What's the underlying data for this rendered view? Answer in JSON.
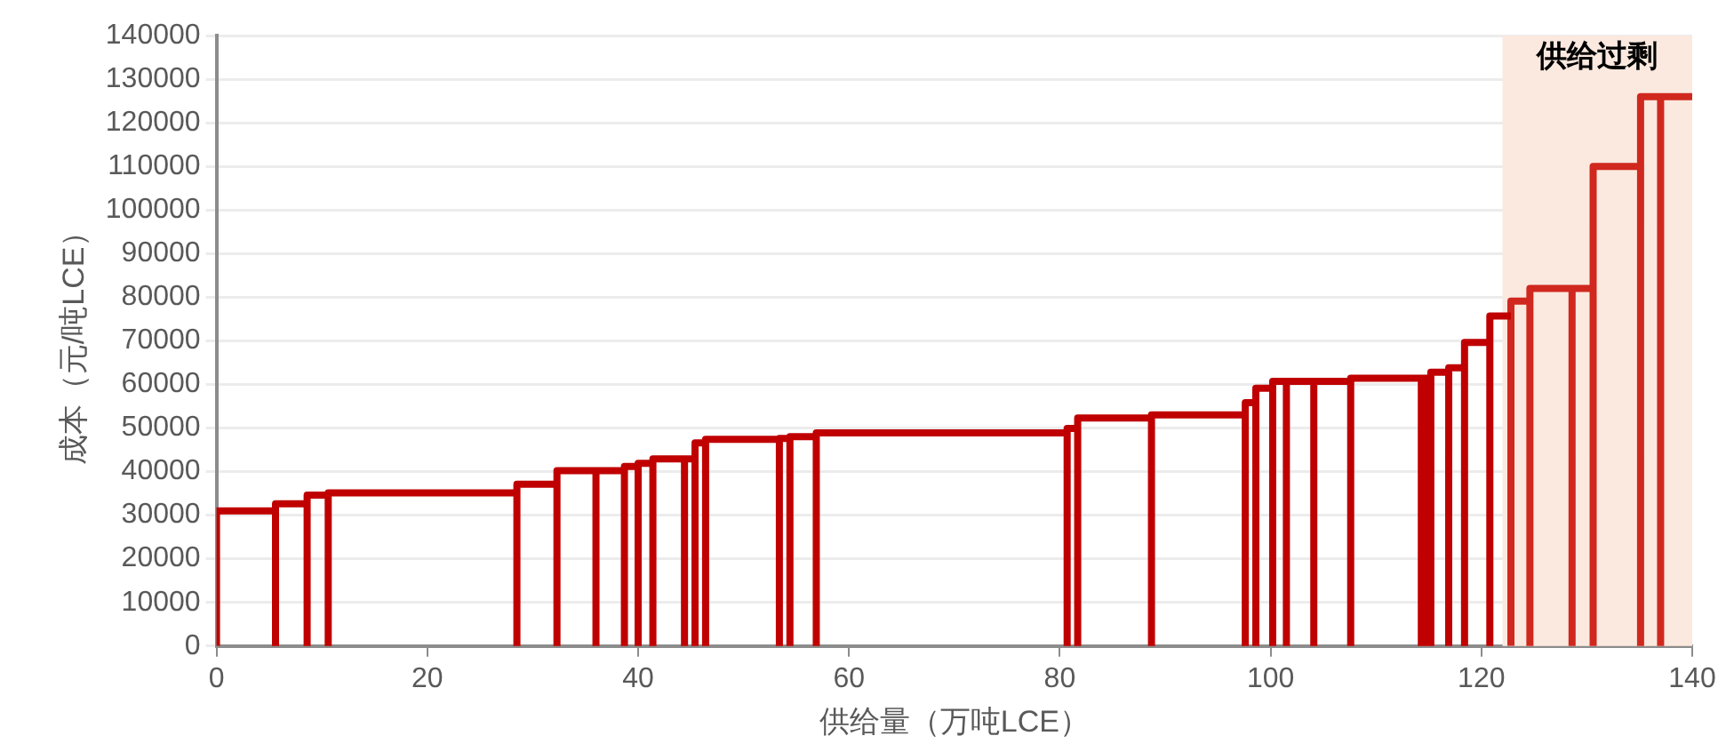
{
  "chart_data": {
    "type": "line",
    "xlabel": "供给量（万吨LCE）",
    "ylabel": "成本（元/吨LCE）",
    "series": [
      {
        "color": "#c00000",
        "x": [
          0,
          0,
          5.6,
          5.6,
          5.6,
          8.6,
          8.6,
          8.6,
          10.6,
          10.6,
          10.6,
          28.5,
          28.5,
          28.5,
          32.3,
          32.3,
          32.3,
          36.0,
          36.0,
          36.0,
          38.7,
          38.7,
          38.7,
          40.0,
          40.0,
          40.0,
          41.4,
          41.4,
          41.4,
          44.4,
          44.4,
          44.4,
          45.4,
          45.4,
          45.4,
          46.4,
          46.4,
          46.4,
          53.4,
          53.4,
          53.4,
          54.4,
          54.4,
          54.4,
          56.9,
          56.9,
          56.9,
          80.7,
          80.7,
          80.7,
          81.7,
          81.7,
          81.7,
          88.7,
          88.7,
          88.7,
          97.6,
          97.6,
          97.6,
          98.6,
          98.6,
          98.6,
          100.2,
          100.2,
          100.2,
          101.5,
          101.5,
          101.5,
          104.1,
          104.1,
          104.1,
          107.6,
          107.6,
          107.6,
          114.3,
          114.3,
          114.3,
          114.8,
          114.8,
          114.8,
          115.2,
          115.2,
          115.2,
          116.9,
          116.9,
          116.9,
          118.4,
          118.4,
          118.4,
          120.8,
          120.8,
          120.8,
          122.8
        ],
        "values": [
          0,
          31000,
          31000,
          0,
          32600,
          32600,
          0,
          34600,
          34600,
          0,
          35100,
          35100,
          0,
          37100,
          37100,
          0,
          40200,
          40200,
          0,
          40200,
          40200,
          0,
          41200,
          41200,
          0,
          41900,
          41900,
          0,
          42900,
          42900,
          0,
          42900,
          42900,
          0,
          46600,
          46600,
          0,
          47400,
          47400,
          0,
          47600,
          47600,
          0,
          48000,
          48000,
          0,
          48900,
          48900,
          0,
          49900,
          49900,
          0,
          52300,
          52300,
          0,
          53000,
          53000,
          0,
          55800,
          55800,
          0,
          59100,
          59100,
          0,
          60700,
          60700,
          0,
          60700,
          60700,
          0,
          60700,
          60700,
          0,
          61400,
          61400,
          0,
          61400,
          61400,
          0,
          61400,
          61400,
          0,
          62800,
          62800,
          0,
          63800,
          63800,
          0,
          69600,
          69600,
          0,
          75700,
          75700
        ]
      },
      {
        "color": "#d0281e",
        "x": [
          122.8,
          122.8,
          124.6,
          124.6,
          124.6,
          128.6,
          128.6,
          128.6,
          130.6,
          130.6,
          130.6,
          135.1,
          135.1,
          135.1,
          137.0,
          137.0,
          137.0,
          140
        ],
        "values": [
          0,
          79100,
          79100,
          0,
          82000,
          82000,
          0,
          82000,
          82000,
          0,
          110000,
          110000,
          0,
          126000,
          126000,
          0,
          126000,
          126000
        ]
      }
    ],
    "bands": [
      {
        "axis": "x",
        "from": 122,
        "to": 140,
        "label": "供给过剩",
        "color": "#fbe9df"
      }
    ],
    "xlim": [
      0,
      140
    ],
    "xticks": [
      0,
      20,
      40,
      60,
      80,
      100,
      120,
      140
    ],
    "ylim": [
      0,
      140000
    ],
    "yticks": [
      0,
      10000,
      20000,
      30000,
      40000,
      50000,
      60000,
      70000,
      80000,
      90000,
      100000,
      110000,
      120000,
      130000,
      140000
    ],
    "grid": "y",
    "legend": false
  }
}
